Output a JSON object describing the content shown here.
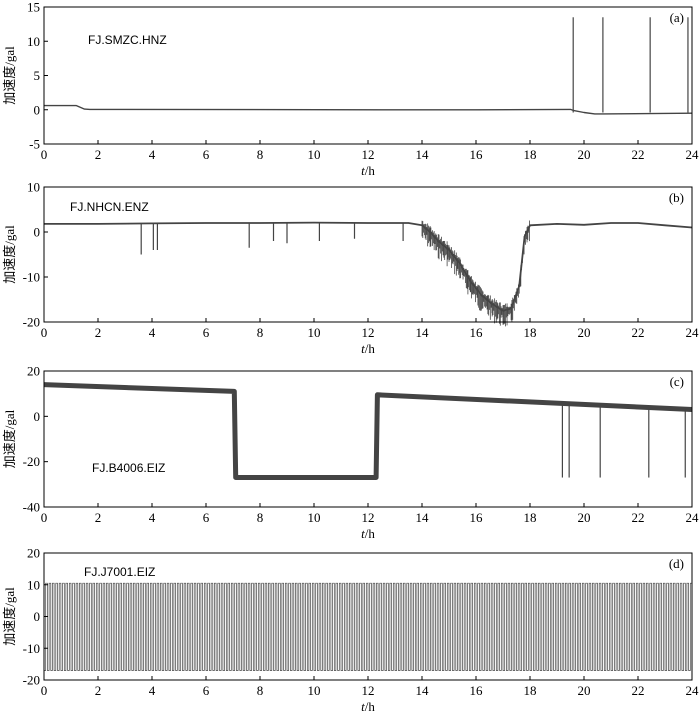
{
  "chart_data": [
    {
      "type": "line",
      "panel_label": "(a)",
      "station": "FJ.SMZC.HNZ",
      "xlabel": "t/h",
      "ylabel": "加速度/gal",
      "xlim": [
        0,
        24
      ],
      "ylim": [
        -5,
        15
      ],
      "xticks": [
        0,
        2,
        4,
        6,
        8,
        10,
        12,
        14,
        16,
        18,
        20,
        22,
        24
      ],
      "yticks": [
        -5,
        0,
        5,
        10,
        15
      ],
      "series": [
        {
          "x": [
            0,
            1.2,
            1.5,
            1.7,
            13.4,
            16.0,
            19.5,
            19.6,
            20.0,
            20.4,
            20.7,
            24
          ],
          "y": [
            0.6,
            0.6,
            0.1,
            0.05,
            0.0,
            0.0,
            0.05,
            -0.1,
            -0.4,
            -0.6,
            -0.6,
            -0.5
          ]
        }
      ],
      "spikes": [
        {
          "x": 19.6,
          "y": 13.5
        },
        {
          "x": 20.7,
          "y": 13.5
        },
        {
          "x": 22.45,
          "y": 13.5
        },
        {
          "x": 23.85,
          "y": 13.5
        }
      ]
    },
    {
      "type": "line",
      "panel_label": "(b)",
      "station": "FJ.NHCN.ENZ",
      "xlabel": "t/h",
      "ylabel": "加速度/gal",
      "xlim": [
        0,
        24
      ],
      "ylim": [
        -20,
        10
      ],
      "xticks": [
        0,
        2,
        4,
        6,
        8,
        10,
        12,
        14,
        16,
        18,
        20,
        22,
        24
      ],
      "yticks": [
        -20,
        -10,
        0,
        10
      ],
      "series": [
        {
          "x": [
            0,
            2,
            4,
            6,
            8,
            10,
            12,
            13.5,
            14.0,
            14.3,
            14.6,
            15.0,
            15.4,
            15.8,
            16.2,
            16.6,
            17.0,
            17.3,
            17.6,
            17.8,
            18.0,
            19,
            20,
            21,
            22,
            23,
            24
          ],
          "y": [
            1.8,
            1.8,
            1.9,
            2.0,
            2.0,
            2.1,
            2.0,
            2.0,
            1.5,
            0,
            -2,
            -4,
            -7,
            -11,
            -14,
            -16,
            -17.5,
            -17,
            -12,
            -1,
            1.5,
            1.8,
            1.6,
            2.0,
            2.0,
            1.5,
            1.0
          ]
        }
      ],
      "spikes": [
        {
          "x": 3.6,
          "y": -5
        },
        {
          "x": 4.05,
          "y": -4
        },
        {
          "x": 4.2,
          "y": -4
        },
        {
          "x": 7.6,
          "y": -3.5
        },
        {
          "x": 8.5,
          "y": -2
        },
        {
          "x": 9.0,
          "y": -2.5
        },
        {
          "x": 10.2,
          "y": -2
        },
        {
          "x": 11.5,
          "y": -1.5
        },
        {
          "x": 13.3,
          "y": -2
        }
      ]
    },
    {
      "type": "line",
      "panel_label": "(c)",
      "station": "FJ.B4006.EIZ",
      "xlabel": "t/h",
      "ylabel": "加速度/gal",
      "xlim": [
        0,
        24
      ],
      "ylim": [
        -40,
        20
      ],
      "xticks": [
        0,
        2,
        4,
        6,
        8,
        10,
        12,
        14,
        16,
        18,
        20,
        22,
        24
      ],
      "yticks": [
        -40,
        -20,
        0,
        20
      ],
      "series": [
        {
          "x": [
            0,
            7.05,
            7.1,
            12.3,
            12.35,
            24
          ],
          "y": [
            14,
            11,
            -27,
            -27,
            9.5,
            3
          ]
        }
      ],
      "spikes": [
        {
          "x": 19.2,
          "y": -27
        },
        {
          "x": 19.45,
          "y": -27
        },
        {
          "x": 20.6,
          "y": -27
        },
        {
          "x": 22.4,
          "y": -27
        },
        {
          "x": 23.75,
          "y": -27
        }
      ]
    },
    {
      "type": "line",
      "panel_label": "(d)",
      "station": "FJ.J7001.EIZ",
      "xlabel": "t/h",
      "ylabel": "加速度/gal",
      "xlim": [
        0,
        24
      ],
      "ylim": [
        -20,
        20
      ],
      "xticks": [
        0,
        2,
        4,
        6,
        8,
        10,
        12,
        14,
        16,
        18,
        20,
        22,
        24
      ],
      "yticks": [
        -20,
        -10,
        0,
        10,
        20
      ],
      "oscillation": {
        "high": 10.5,
        "low": -17,
        "period_h": 0.125
      }
    }
  ]
}
